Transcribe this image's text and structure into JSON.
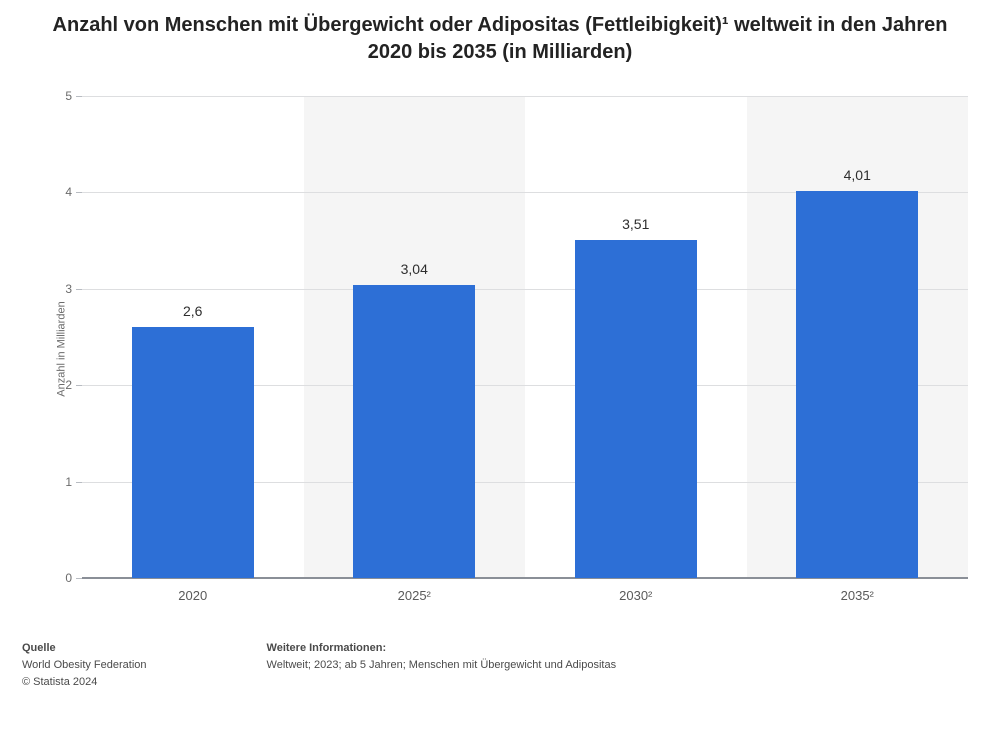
{
  "title": "Anzahl von Menschen mit Übergewicht oder Adipositas (Fettleibigkeit)¹ weltweit in den Jahren 2020 bis 2035 (in Milliarden)",
  "chart": {
    "type": "bar",
    "ylabel": "Anzahl in Milliarden",
    "ylim": [
      0,
      5
    ],
    "ytick_step": 1,
    "yticks": [
      0,
      1,
      2,
      3,
      4,
      5
    ],
    "categories": [
      "2020",
      "2025²",
      "2030²",
      "2035²"
    ],
    "values": [
      2.6,
      3.04,
      3.51,
      4.01
    ],
    "value_labels": [
      "2,6",
      "3,04",
      "3,51",
      "4,01"
    ],
    "bar_color": "#2d6fd6",
    "stripe_color": "#f5f5f5",
    "background_color": "#ffffff",
    "grid_color": "#dddee0",
    "axis_color": "#8a8f97",
    "tick_label_color": "#6b6b6b",
    "value_label_fontsize": 14,
    "tick_fontsize": 12,
    "title_fontsize": 20,
    "bar_width_ratio": 0.55
  },
  "footer": {
    "source_head": "Quelle",
    "source_line1": "World Obesity Federation",
    "source_line2": "© Statista 2024",
    "info_head": "Weitere Informationen:",
    "info_line": "Weltweit; 2023; ab 5 Jahren; Menschen mit Übergewicht und Adipositas"
  }
}
